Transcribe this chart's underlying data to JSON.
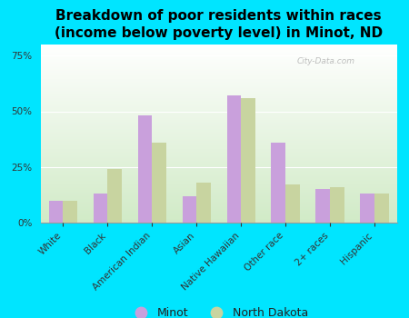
{
  "title": "Breakdown of poor residents within races\n(income below poverty level) in Minot, ND",
  "categories": [
    "White",
    "Black",
    "American Indian",
    "Asian",
    "Native Hawaiian",
    "Other race",
    "2+ races",
    "Hispanic"
  ],
  "minot_values": [
    10,
    13,
    48,
    12,
    57,
    36,
    15,
    13
  ],
  "nd_values": [
    10,
    24,
    36,
    18,
    56,
    17,
    16,
    13
  ],
  "minot_color": "#c9a0dc",
  "nd_color": "#c8d4a0",
  "background_color": "#00e5ff",
  "plot_bg_color": "#e8f5e0",
  "title_fontsize": 11,
  "tick_fontsize": 7.5,
  "ylabel_ticks": [
    0,
    25,
    50,
    75
  ],
  "ylim": [
    0,
    80
  ],
  "legend_labels": [
    "Minot",
    "North Dakota"
  ],
  "watermark": "City-Data.com",
  "bar_width": 0.32
}
